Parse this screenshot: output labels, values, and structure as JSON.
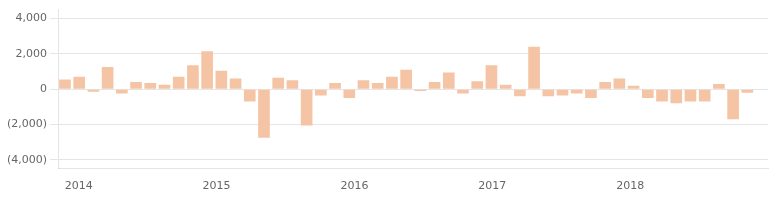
{
  "chart_data": {
    "type": "bar",
    "color": "#F5C4A4",
    "x": [
      2013.9,
      2014.003125,
      2014.10625,
      2014.209375,
      2014.3125,
      2014.415625,
      2014.51875,
      2014.621875,
      2014.725,
      2014.828125,
      2014.93125,
      2015.034375,
      2015.1375,
      2015.240625,
      2015.34375,
      2015.446875,
      2015.55,
      2015.653125,
      2015.75625,
      2015.859375,
      2015.9625,
      2016.065625,
      2016.16875,
      2016.271875,
      2016.375,
      2016.478125,
      2016.58125,
      2016.684375,
      2016.7875,
      2016.890625,
      2016.99375,
      2017.096875,
      2017.2,
      2017.303125,
      2017.40625,
      2017.509375,
      2017.6125,
      2017.715625,
      2017.81875,
      2017.921875,
      2018.025,
      2018.128125,
      2018.23125,
      2018.334375,
      2018.4375,
      2018.540625,
      2018.64375,
      2018.746875,
      2018.85
    ],
    "values": [
      550,
      700,
      -150,
      1250,
      -250,
      400,
      350,
      250,
      700,
      1350,
      2150,
      1050,
      600,
      -700,
      -2750,
      650,
      500,
      -2050,
      -350,
      350,
      -500,
      500,
      350,
      700,
      1100,
      -100,
      400,
      950,
      -250,
      450,
      1350,
      250,
      -400,
      2400,
      -400,
      -350,
      -250,
      -500,
      400,
      600,
      200,
      -500,
      -700,
      -800,
      -700,
      -700,
      300,
      -1700,
      -200
    ],
    "xlim": [
      2013.85,
      2019.0
    ],
    "xticks": [
      2014,
      2015,
      2016,
      2017,
      2018
    ],
    "ylim": [
      -4500,
      4500
    ],
    "yticks": [
      {
        "value": -4000,
        "label": "(4,000)"
      },
      {
        "value": -2000,
        "label": "(2,000)"
      },
      0,
      {
        "value": 2000,
        "label": "2,000"
      },
      {
        "value": 4000,
        "label": "4,000"
      }
    ],
    "grid": true
  }
}
